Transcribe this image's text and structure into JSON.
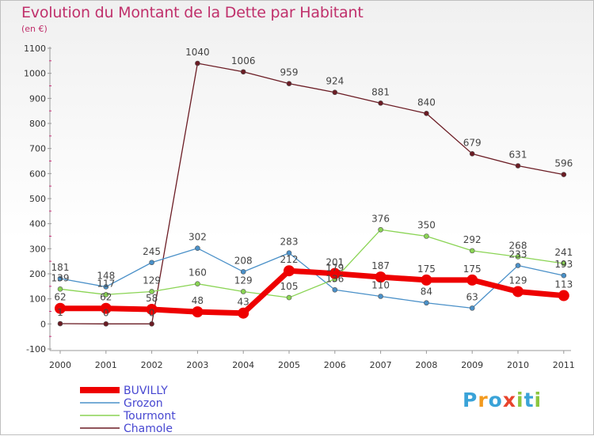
{
  "title": "Evolution du Montant de la Dette par Habitant",
  "subtitle": "(en €)",
  "logo": {
    "letters": [
      "P",
      "r",
      "o",
      "x",
      "i",
      "t",
      "i"
    ],
    "colors": [
      "#3aa3d8",
      "#f39a1e",
      "#3aa3d8",
      "#e8442c",
      "#8cc63f",
      "#3aa3d8",
      "#8cc63f"
    ]
  },
  "chart_data": {
    "type": "line",
    "x": [
      "2000",
      "2001",
      "2002",
      "2003",
      "2004",
      "2005",
      "2006",
      "2007",
      "2008",
      "2009",
      "2010",
      "2011"
    ],
    "ylim": [
      -100,
      1100
    ],
    "yticks": [
      -100,
      0,
      100,
      200,
      300,
      400,
      500,
      600,
      700,
      800,
      900,
      1000,
      1100
    ],
    "grid": false,
    "legend_position": "bottom-left",
    "series": [
      {
        "name": "BUVILLY",
        "color": "#ee0000",
        "values": [
          62,
          62,
          58,
          48,
          43,
          212,
          201,
          187,
          175,
          175,
          129,
          113
        ]
      },
      {
        "name": "Grozon",
        "color": "#4a90c8",
        "values": [
          181,
          148,
          245,
          302,
          208,
          283,
          136,
          110,
          84,
          63,
          233,
          193
        ]
      },
      {
        "name": "Tourmont",
        "color": "#8ad454",
        "values": [
          139,
          117,
          129,
          160,
          129,
          105,
          179,
          376,
          350,
          292,
          268,
          241
        ]
      },
      {
        "name": "Chamole",
        "color": "#6b1c24",
        "values": [
          1,
          0,
          0,
          1040,
          1006,
          959,
          924,
          881,
          840,
          679,
          631,
          596
        ]
      }
    ],
    "data_labels": [
      {
        "series": "BUVILLY",
        "labels": [
          "62",
          "62",
          "58",
          "48",
          "43",
          "212",
          "201",
          "187",
          "175",
          "175",
          "129",
          "113"
        ]
      },
      {
        "series": "Grozon",
        "labels": [
          "181",
          "148",
          "245",
          "302",
          "208",
          "283",
          "136",
          "110",
          "84",
          "63",
          "233",
          "193"
        ]
      },
      {
        "series": "Tourmont",
        "labels": [
          "139",
          "117",
          "129",
          "160",
          "129",
          "105",
          "179",
          "376",
          "350",
          "292",
          "268",
          "241"
        ]
      },
      {
        "series": "Chamole",
        "labels": [
          "1",
          "0",
          "0",
          "1040",
          "1006",
          "959",
          "924",
          "881",
          "840",
          "679",
          "631",
          "596"
        ]
      }
    ]
  }
}
